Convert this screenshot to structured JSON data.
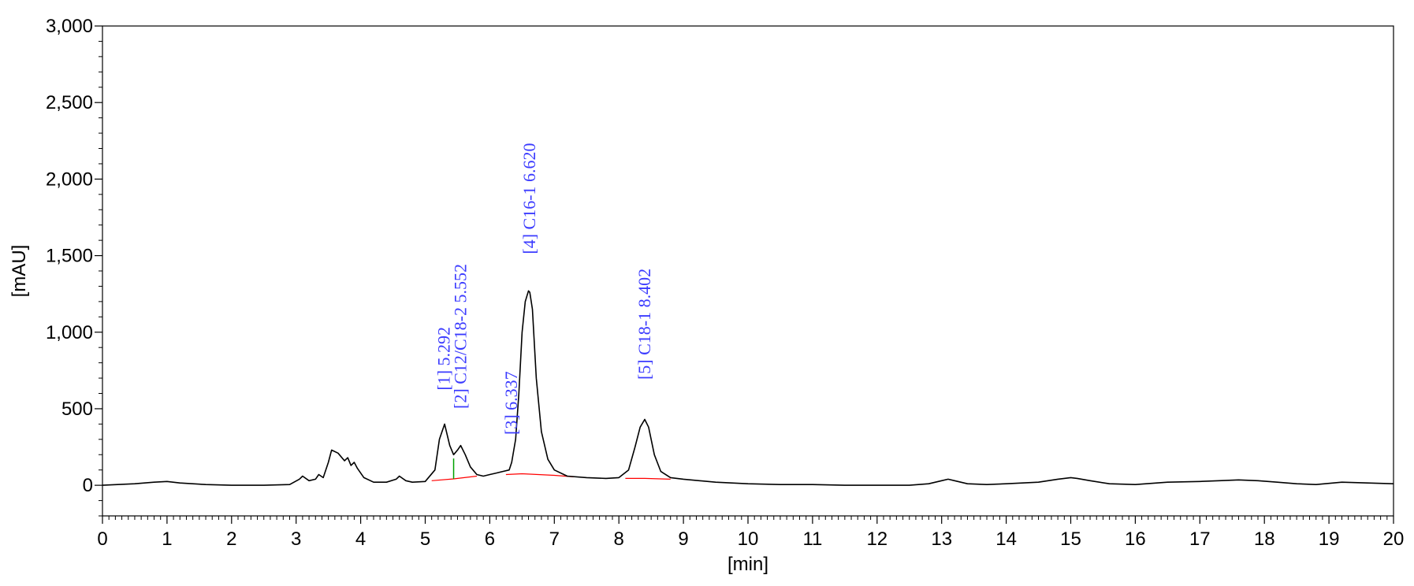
{
  "chart_data": {
    "type": "line",
    "title": "",
    "xlabel": "[min]",
    "ylabel": "[mAU]",
    "xlim": [
      0,
      20
    ],
    "ylim": [
      -200,
      3000
    ],
    "grid": false,
    "legend": "none",
    "x_ticks": [
      0,
      1,
      2,
      3,
      4,
      5,
      6,
      7,
      8,
      9,
      10,
      11,
      12,
      13,
      14,
      15,
      16,
      17,
      18,
      19,
      20
    ],
    "x_tick_labels": [
      "0",
      "1",
      "2",
      "3",
      "4",
      "5",
      "6",
      "7",
      "8",
      "9",
      "10",
      "11",
      "12",
      "13",
      "14",
      "15",
      "16",
      "17",
      "18",
      "19",
      "20"
    ],
    "y_ticks": [
      0,
      500,
      1000,
      1500,
      2000,
      2500,
      3000
    ],
    "y_tick_labels": [
      "0",
      "500",
      "1,000",
      "1,500",
      "2,000",
      "2,500",
      "3,000"
    ],
    "colors": {
      "signal": "#000000",
      "baseline": "#ff0000",
      "separator": "#00a000",
      "peak_label": "#3b3bff"
    },
    "series": [
      {
        "x": [
          0,
          0.5,
          0.8,
          1.0,
          1.2,
          1.6,
          2.0,
          2.5,
          2.9,
          3.05,
          3.1,
          3.2,
          3.3,
          3.35,
          3.42,
          3.5,
          3.55,
          3.65,
          3.75,
          3.8,
          3.85,
          3.9,
          3.95,
          4.05,
          4.2,
          4.4,
          4.55,
          4.6,
          4.7,
          4.8,
          5.0,
          5.15,
          5.22,
          5.3,
          5.38,
          5.44,
          5.5,
          5.55,
          5.62,
          5.7,
          5.8,
          5.9,
          6.0,
          6.1,
          6.2,
          6.3,
          6.34,
          6.4,
          6.45,
          6.5,
          6.55,
          6.6,
          6.62,
          6.66,
          6.72,
          6.8,
          6.9,
          7.0,
          7.2,
          7.5,
          7.8,
          8.0,
          8.15,
          8.25,
          8.33,
          8.4,
          8.46,
          8.55,
          8.65,
          8.8,
          9.0,
          9.5,
          10.0,
          10.5,
          11.0,
          11.5,
          12.0,
          12.5,
          12.8,
          13.0,
          13.1,
          13.2,
          13.4,
          13.7,
          14.0,
          14.5,
          14.8,
          15.0,
          15.1,
          15.3,
          15.6,
          16.0,
          16.5,
          17.0,
          17.3,
          17.6,
          17.9,
          18.2,
          18.5,
          18.8,
          19.2,
          19.6,
          20.0
        ],
        "values": [
          0,
          10,
          20,
          25,
          15,
          5,
          0,
          0,
          5,
          40,
          60,
          30,
          40,
          70,
          50,
          150,
          230,
          210,
          160,
          180,
          130,
          150,
          110,
          50,
          20,
          20,
          40,
          60,
          30,
          20,
          25,
          100,
          300,
          400,
          260,
          200,
          230,
          260,
          200,
          120,
          70,
          60,
          70,
          80,
          90,
          100,
          150,
          300,
          600,
          1000,
          1200,
          1270,
          1260,
          1150,
          700,
          350,
          170,
          100,
          60,
          50,
          45,
          50,
          100,
          250,
          380,
          430,
          380,
          200,
          90,
          50,
          40,
          20,
          10,
          5,
          5,
          0,
          0,
          0,
          10,
          30,
          40,
          30,
          10,
          5,
          10,
          20,
          40,
          50,
          45,
          30,
          10,
          5,
          20,
          25,
          30,
          35,
          30,
          20,
          10,
          5,
          20,
          15,
          10
        ]
      }
    ],
    "baselines": [
      {
        "x": [
          5.1,
          5.44,
          5.8
        ],
        "values": [
          30,
          42,
          60
        ]
      },
      {
        "x": [
          6.25,
          6.5,
          7.0,
          7.3
        ],
        "values": [
          70,
          75,
          65,
          55
        ]
      },
      {
        "x": [
          8.1,
          8.4,
          8.8
        ],
        "values": [
          45,
          45,
          40
        ]
      }
    ],
    "separators": [
      {
        "x": 5.44,
        "from": 42,
        "to": 175
      }
    ],
    "peak_labels": [
      {
        "text": "[1]  5.292",
        "x": 5.292,
        "y": 620
      },
      {
        "text": "[2] C12/C18-2  5.552",
        "x": 5.552,
        "y": 500
      },
      {
        "text": "[3]  6.337",
        "x": 6.337,
        "y": 330
      },
      {
        "text": "[4] C16-1  6.620",
        "x": 6.62,
        "y": 1510
      },
      {
        "text": "[5] C18-1  8.402",
        "x": 8.402,
        "y": 690
      }
    ]
  }
}
